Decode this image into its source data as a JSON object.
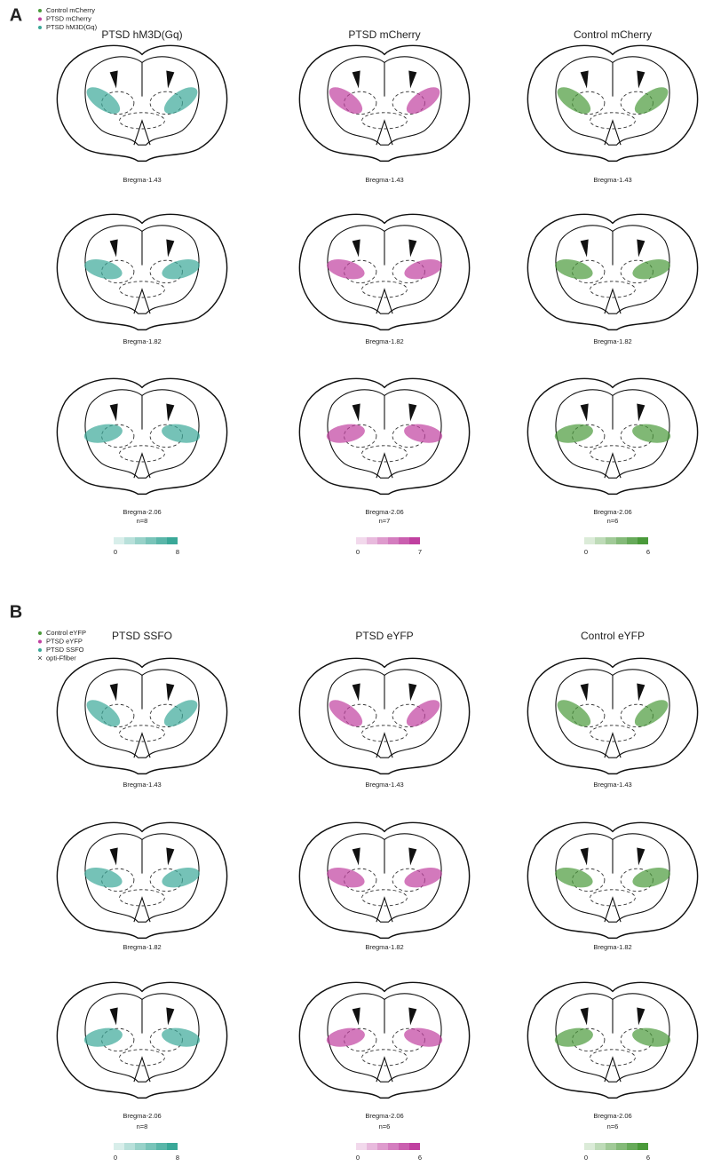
{
  "panels": [
    {
      "label": "A",
      "legend": [
        {
          "text": "Control mCherry",
          "color": "#4a9a3a",
          "marker": "dot"
        },
        {
          "text": "PTSD mCherry",
          "color": "#c040a0",
          "marker": "dot"
        },
        {
          "text": "PTSD hM3D(Gq)",
          "color": "#3aa898",
          "marker": "dot"
        }
      ],
      "columns": [
        {
          "title": "PTSD hM3D(Gq)",
          "color": "#3aa898",
          "rows": [
            "Bregma-1.43",
            "Bregma-1.82",
            "Bregma-2.06"
          ],
          "n": "n=8",
          "scale": {
            "min": 0,
            "max": 8
          }
        },
        {
          "title": "PTSD mCherry",
          "color": "#c040a0",
          "rows": [
            "Bregma-1.43",
            "Bregma-1.82",
            "Bregma-2.06"
          ],
          "n": "n=7",
          "scale": {
            "min": 0,
            "max": 7
          }
        },
        {
          "title": "Control mCherry",
          "color": "#4a9a3a",
          "rows": [
            "Bregma-1.43",
            "Bregma-1.82",
            "Bregma-2.06"
          ],
          "n": "n=6",
          "scale": {
            "min": 0,
            "max": 6
          }
        }
      ]
    },
    {
      "label": "B",
      "legend": [
        {
          "text": "Control eYFP",
          "color": "#4a9a3a",
          "marker": "dot"
        },
        {
          "text": "PTSD eYFP",
          "color": "#c040a0",
          "marker": "dot"
        },
        {
          "text": "PTSD SSFO",
          "color": "#3aa898",
          "marker": "dot"
        },
        {
          "text": "opti-Ffiber",
          "color": "#000000",
          "marker": "cross"
        }
      ],
      "columns": [
        {
          "title": "PTSD SSFO",
          "color": "#3aa898",
          "rows": [
            "Bregma-1.43",
            "Bregma-1.82",
            "Bregma-2.06"
          ],
          "n": "n=8",
          "scale": {
            "min": 0,
            "max": 8
          }
        },
        {
          "title": "PTSD eYFP",
          "color": "#c040a0",
          "rows": [
            "Bregma-1.43",
            "Bregma-1.82",
            "Bregma-2.06"
          ],
          "n": "n=6",
          "scale": {
            "min": 0,
            "max": 6
          }
        },
        {
          "title": "Control eYFP",
          "color": "#4a9a3a",
          "rows": [
            "Bregma-1.43",
            "Bregma-1.82",
            "Bregma-2.06"
          ],
          "n": "n=6",
          "scale": {
            "min": 0,
            "max": 6
          }
        }
      ]
    }
  ]
}
